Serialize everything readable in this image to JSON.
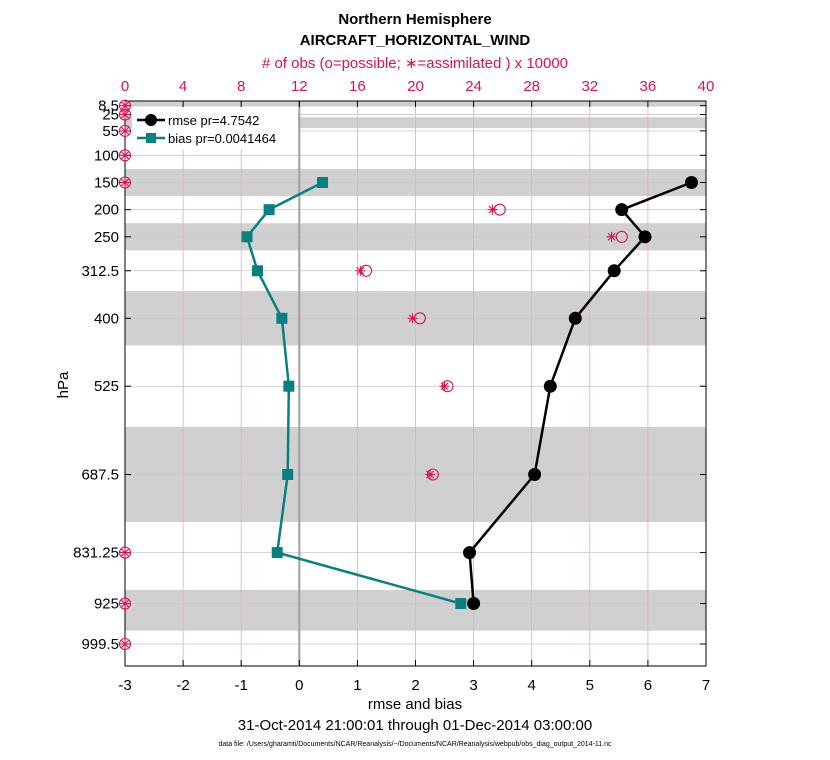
{
  "chart_data": {
    "type": "line",
    "title": "Northern Hemisphere",
    "subtitle": "AIRCRAFT_HORIZONTAL_WIND",
    "top_axis_label": "# of obs (o=possible; ∗=assimilated ) x 10000",
    "xlabel": "rmse and bias",
    "ylabel": "hPa",
    "date_range": "31-Oct-2014 21:00:01 through 01-Dec-2014 03:00:00",
    "footnote": "data file: /Users/gharamti/Documents/NCAR/Reanalysis/~/Documents/NCAR/Reanalysis/webpub/obs_diag_output_2014-11.nc",
    "xlim": [
      -3,
      7
    ],
    "xticks": [
      "-3",
      "-2",
      "-1",
      "0",
      "1",
      "2",
      "3",
      "4",
      "5",
      "6",
      "7"
    ],
    "top_lim": [
      0,
      40
    ],
    "top_ticks": [
      "0",
      "4",
      "8",
      "12",
      "16",
      "20",
      "24",
      "28",
      "32",
      "36",
      "40"
    ],
    "ylim": [
      0,
      1040
    ],
    "yticks": [
      {
        "value": 8.5,
        "label": "8.5"
      },
      {
        "value": 25,
        "label": "25"
      },
      {
        "value": 55,
        "label": "55"
      },
      {
        "value": 100,
        "label": "100"
      },
      {
        "value": 150,
        "label": "150"
      },
      {
        "value": 200,
        "label": "200"
      },
      {
        "value": 250,
        "label": "250"
      },
      {
        "value": 312.5,
        "label": "312.5"
      },
      {
        "value": 400,
        "label": "400"
      },
      {
        "value": 525,
        "label": "525"
      },
      {
        "value": 687.5,
        "label": "687.5"
      },
      {
        "value": 831.25,
        "label": "831.25"
      },
      {
        "value": 925,
        "label": "925"
      },
      {
        "value": 999.5,
        "label": "999.5"
      }
    ],
    "bands": [
      [
        0,
        10
      ],
      [
        30,
        50
      ],
      [
        125,
        175
      ],
      [
        225,
        275
      ],
      [
        350,
        450
      ],
      [
        600,
        775
      ],
      [
        900,
        975
      ]
    ],
    "series": [
      {
        "name": "rmse",
        "legend": "rmse pr=4.7542",
        "color": "#000000",
        "marker": "circle",
        "levels": [
          150,
          200,
          250,
          312.5,
          400,
          525,
          687.5,
          831.25,
          925
        ],
        "values": [
          6.75,
          5.55,
          5.95,
          5.42,
          4.75,
          4.32,
          4.05,
          2.93,
          3.0
        ]
      },
      {
        "name": "bias",
        "legend": "bias pr=0.0041464",
        "color": "#0a7f80",
        "marker": "square",
        "levels": [
          150,
          200,
          250,
          312.5,
          400,
          525,
          687.5,
          831.25,
          925
        ],
        "values": [
          0.4,
          -0.52,
          -0.9,
          -0.72,
          -0.3,
          -0.18,
          -0.2,
          -0.38,
          2.78
        ]
      }
    ],
    "obs_possible": {
      "levels": [
        8.5,
        25,
        55,
        100,
        150,
        200,
        250,
        312.5,
        400,
        525,
        687.5,
        831.25,
        925,
        999.5
      ],
      "values": [
        0,
        0,
        0,
        0,
        0,
        25.8,
        34.2,
        16.6,
        20.3,
        22.2,
        21.2,
        0,
        0,
        0
      ]
    },
    "obs_assimilated": {
      "levels": [
        8.5,
        25,
        55,
        100,
        150,
        200,
        250,
        312.5,
        400,
        525,
        687.5,
        831.25,
        925,
        999.5
      ],
      "values": [
        0,
        0,
        0,
        0,
        0,
        25.3,
        33.5,
        16.2,
        19.8,
        22.0,
        21.0,
        0,
        0,
        0
      ]
    }
  },
  "colors": {
    "rmse": "#000000",
    "bias": "#0a7f80",
    "obs": "#d4145a",
    "band": "#d0d0d0",
    "grid": "#c8c8c8",
    "obs_grid": "#e6a6c0",
    "zero_line": "#a0a0a0"
  }
}
